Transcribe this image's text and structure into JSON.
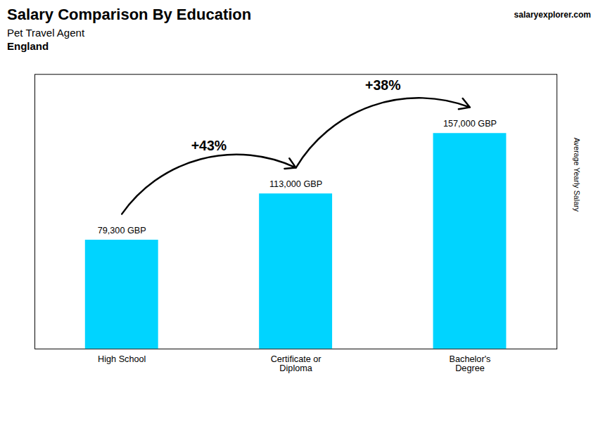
{
  "chart_data": {
    "type": "bar",
    "title": "Salary Comparison By Education",
    "subtitle": [
      "Pet Travel Agent",
      "England"
    ],
    "ylabel": "Average Yearly Salary",
    "categories": [
      "High School",
      "Certificate or\nDiploma",
      "Bachelor's\nDegree"
    ],
    "values": [
      79300,
      113000,
      157000
    ],
    "value_labels": [
      "79,300 GBP",
      "113,000 GBP",
      "157,000 GBP"
    ],
    "data_labels": true,
    "color": "#00d4ff",
    "ylim": [
      0,
      200000
    ],
    "yticks": [],
    "tick_labels": "x",
    "grid": false,
    "annotations": [
      {
        "text": "+43%",
        "from": "High School",
        "to": "Certificate or\nDiploma"
      },
      {
        "text": "+38%",
        "from": "Certificate or\nDiploma",
        "to": "Bachelor's\nDegree"
      },
      {
        "text": [
          "salary",
          "explorer",
          ".com"
        ]
      }
    ]
  }
}
